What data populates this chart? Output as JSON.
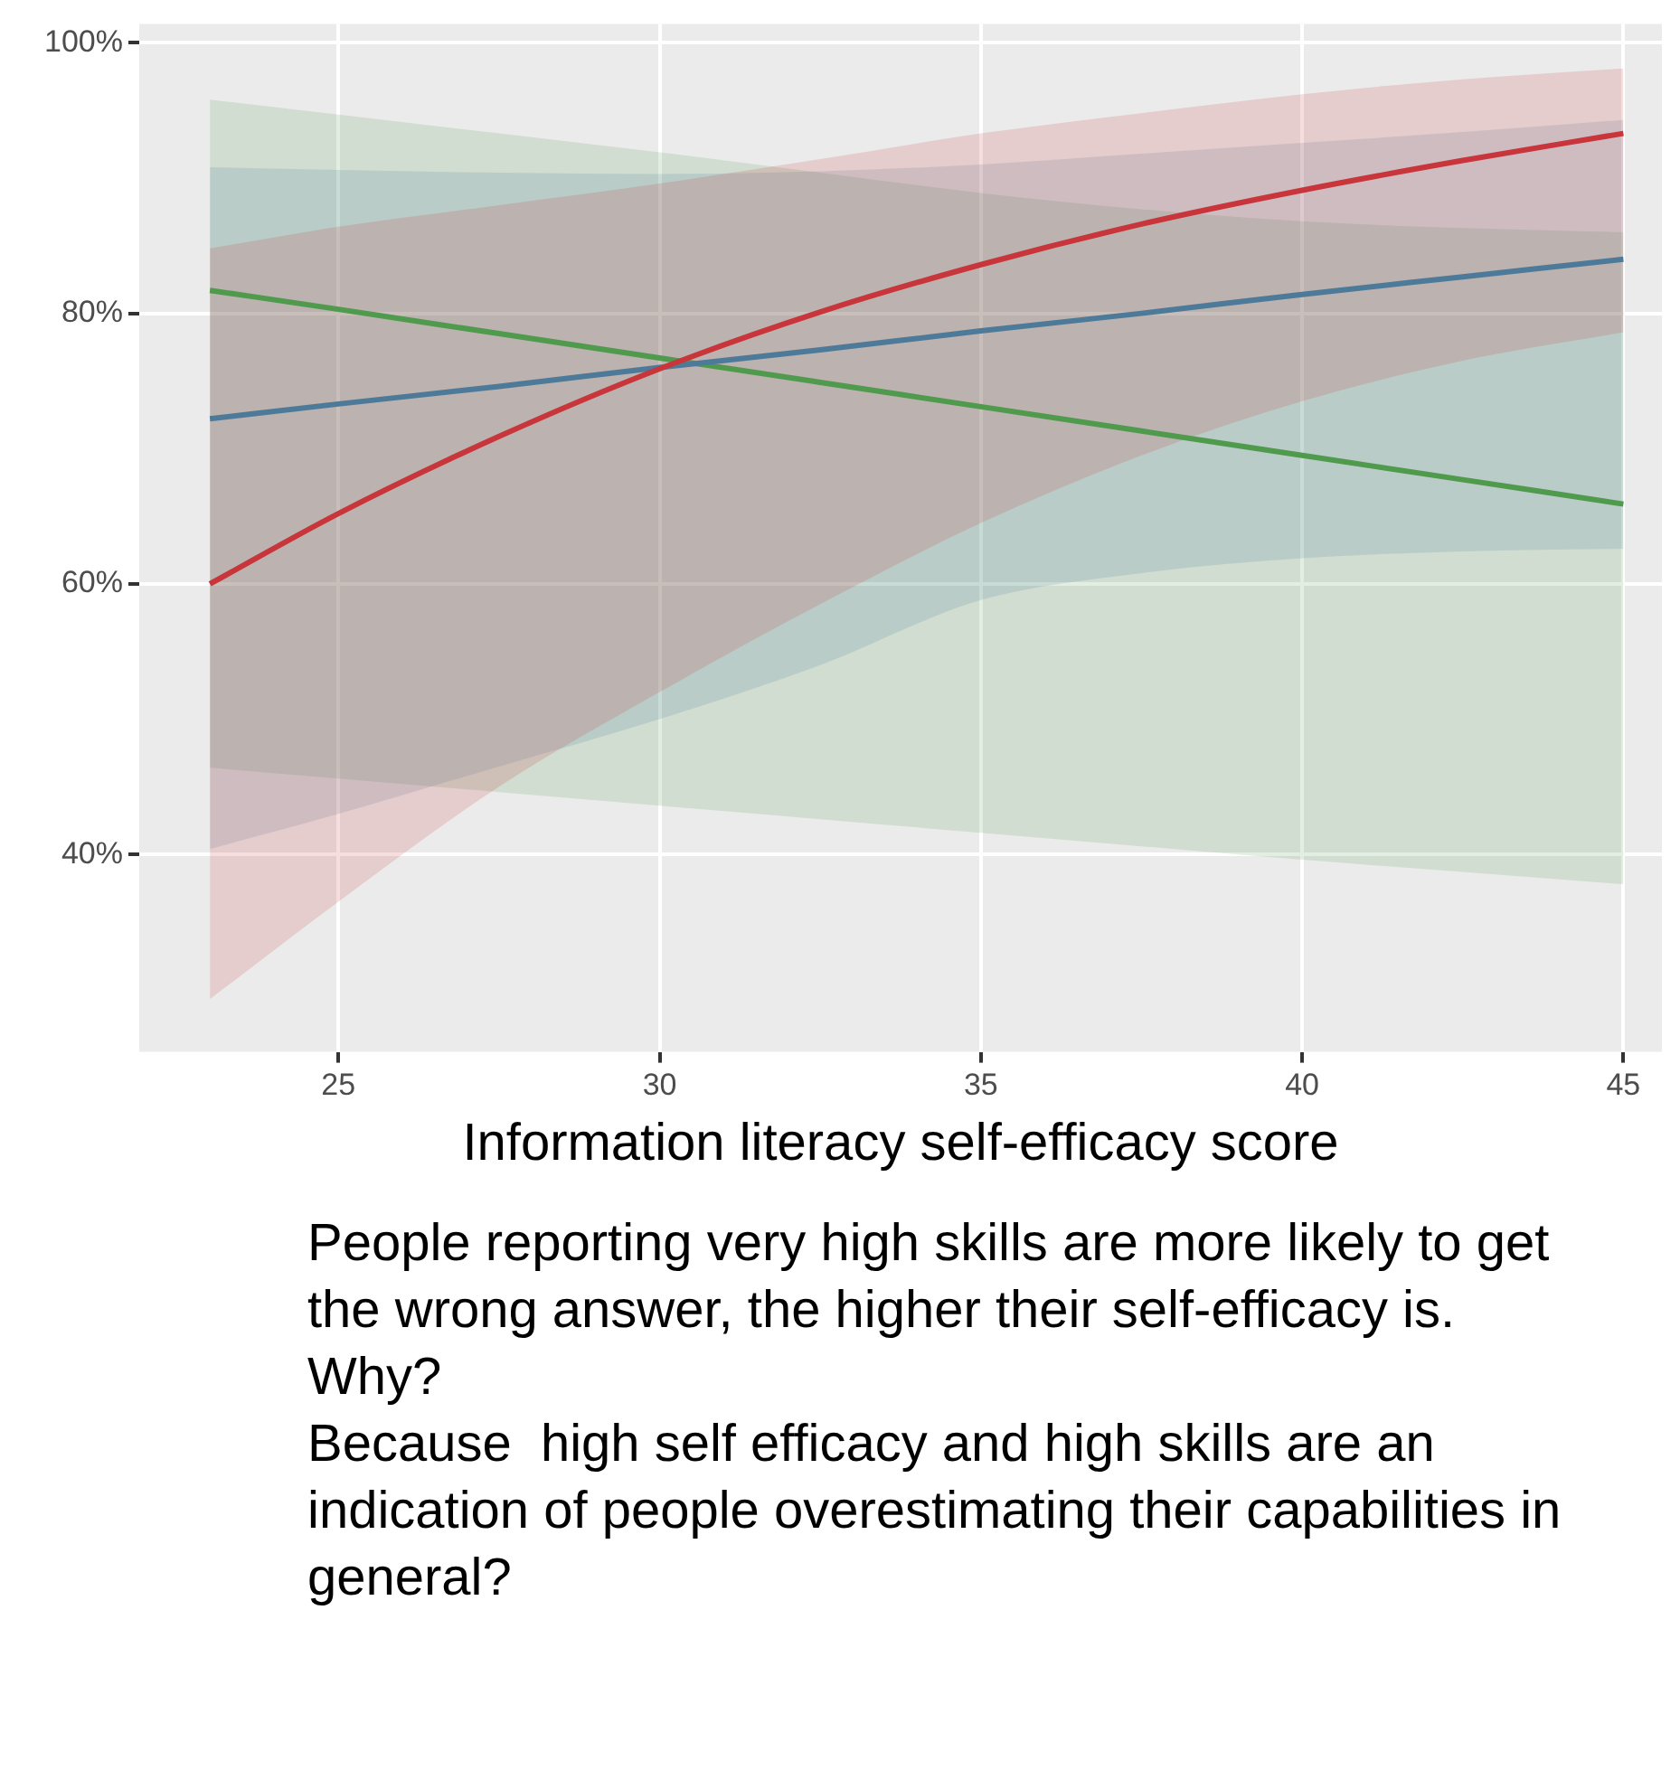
{
  "chart_data": {
    "type": "line",
    "xlabel": "Information literacy self-efficacy score",
    "x": [
      23,
      25,
      27.5,
      30,
      32.5,
      35,
      37.5,
      40,
      42.5,
      45
    ],
    "xlim": [
      21.9,
      45.6
    ],
    "xticks": [
      25,
      30,
      35,
      40,
      45
    ],
    "ylim": [
      25.4,
      101.4
    ],
    "yticks": [
      {
        "value": 40,
        "label": "40%"
      },
      {
        "value": 60,
        "label": "60%"
      },
      {
        "value": 80,
        "label": "80%"
      },
      {
        "value": 100,
        "label": "100%"
      }
    ],
    "grid": true,
    "legend": false,
    "marker": "none",
    "line_style": "solid",
    "series": [
      {
        "color": "#c8353a",
        "values": [
          60,
          65.2,
          70.9,
          75.9,
          80.1,
          83.6,
          86.6,
          89.1,
          91.3,
          93.3
        ],
        "lower": [
          29.3,
          36.5,
          45,
          52,
          58.5,
          64.5,
          69.5,
          73.5,
          76.5,
          78.6
        ],
        "upper": [
          84.8,
          86.4,
          88.0,
          89.6,
          91.4,
          93.3,
          94.8,
          96.2,
          97.3,
          98.1
        ]
      },
      {
        "color": "#4e7a9a",
        "values": [
          72.2,
          73.3,
          74.6,
          76.0,
          77.3,
          78.7,
          80.0,
          81.4,
          82.7,
          84.0
        ],
        "lower": [
          40.4,
          43,
          46.5,
          50,
          54,
          58.8,
          60.8,
          61.9,
          62.4,
          62.6
        ],
        "upper": [
          90.8,
          90.6,
          90.4,
          90.3,
          90.5,
          91.0,
          91.8,
          92.6,
          93.4,
          94.3
        ]
      },
      {
        "color": "#4f9a4c",
        "values": [
          81.7,
          80.3,
          78.5,
          76.7,
          74.9,
          73.1,
          71.3,
          69.5,
          67.7,
          65.9
        ],
        "lower": [
          46.4,
          45.6,
          44.6,
          43.6,
          42.6,
          41.6,
          40.6,
          39.6,
          38.7,
          37.8
        ],
        "upper": [
          95.8,
          94.7,
          93.3,
          91.9,
          90.4,
          88.9,
          87.7,
          86.8,
          86.3,
          86.0
        ]
      }
    ],
    "annotations": [
      "People reporting very high skills are more likely to get the wrong answer, the higher their self-efficacy is.\nWhy?\nBecause  high self efficacy and high skills are an indication of people overestimating their capabilities in general?"
    ]
  }
}
